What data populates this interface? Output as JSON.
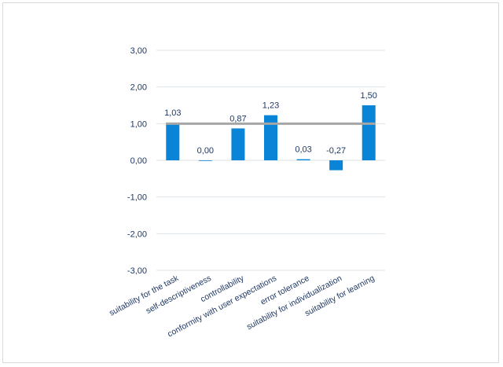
{
  "chart_data": {
    "type": "bar",
    "categories": [
      "suitability for the task",
      "self-descriptiveness",
      "controllability",
      "conformity with user expectations",
      "error tolerance",
      "suitability for individualization",
      "suitability for learning"
    ],
    "values": [
      1.03,
      0.0,
      0.87,
      1.23,
      0.03,
      -0.27,
      1.5
    ],
    "value_labels": [
      "1,03",
      "0,00",
      "0,87",
      "1,23",
      "0,03",
      "-0,27",
      "1,50"
    ],
    "yticks": [
      3,
      2,
      1,
      0,
      -1,
      -2,
      -3
    ],
    "ytick_labels": [
      "3,00",
      "2,00",
      "1,00",
      "0,00",
      "-1,00",
      "-2,00",
      "-3,00"
    ],
    "ylim": [
      -3,
      3
    ],
    "reference_line": 1.0,
    "grid": true,
    "title": "",
    "xlabel": "",
    "ylabel": "",
    "colors": {
      "bar": "#0a84d6",
      "reference_line": "#a6a6a6",
      "grid": "#dde3ea",
      "text": "#1f3864"
    }
  }
}
